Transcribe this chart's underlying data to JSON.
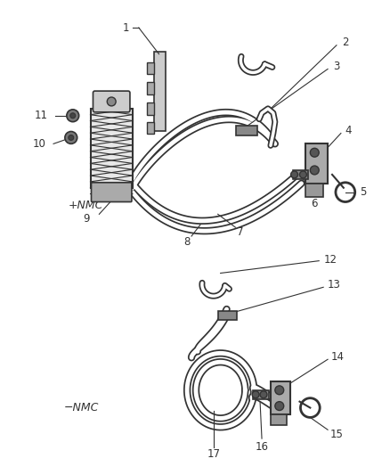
{
  "background_color": "#ffffff",
  "line_color": "#333333",
  "text_color": "#333333",
  "figsize": [
    4.38,
    5.33
  ],
  "dpi": 100
}
